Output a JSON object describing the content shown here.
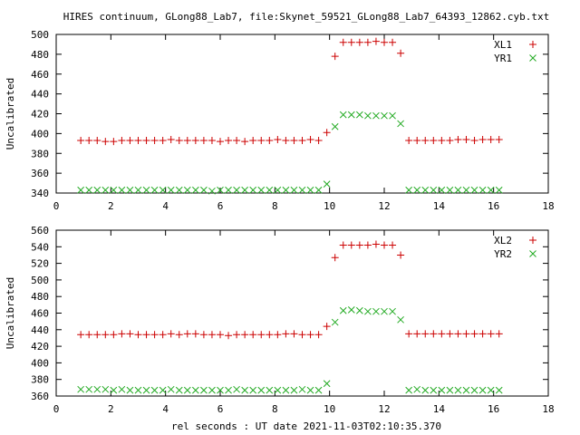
{
  "title": "HIRES continuum, GLong88_Lab7, file:Skynet_59521_GLong88_Lab7_64393_12862.cyb.txt",
  "xlabel": "rel seconds : UT date 2021-11-03T02:10:35.370",
  "colors": {
    "red": "#cc0000",
    "green": "#22aa22"
  },
  "chart_data": [
    {
      "type": "scatter",
      "ylabel": "Uncalibrated",
      "xlim": [
        0,
        18
      ],
      "ylim": [
        340,
        500
      ],
      "xticks": [
        "0",
        "2",
        "4",
        "6",
        "8",
        "10",
        "12",
        "14",
        "16",
        "18"
      ],
      "yticks": [
        "340",
        "360",
        "380",
        "400",
        "420",
        "440",
        "460",
        "480",
        "500"
      ],
      "legend_position": "top-right",
      "x": [
        0.9,
        1.2,
        1.5,
        1.8,
        2.1,
        2.4,
        2.7,
        3.0,
        3.3,
        3.6,
        3.9,
        4.2,
        4.5,
        4.8,
        5.1,
        5.4,
        5.7,
        6.0,
        6.3,
        6.6,
        6.9,
        7.2,
        7.5,
        7.8,
        8.1,
        8.4,
        8.7,
        9.0,
        9.3,
        9.6,
        9.9,
        10.2,
        10.5,
        10.8,
        11.1,
        11.4,
        11.7,
        12.0,
        12.3,
        12.6,
        12.9,
        13.2,
        13.5,
        13.8,
        14.1,
        14.4,
        14.7,
        15.0,
        15.3,
        15.6,
        15.9,
        16.2
      ],
      "series": [
        {
          "name": "XL1",
          "marker": "plus",
          "color": "#cc0000",
          "values": [
            393,
            393,
            393,
            392,
            392,
            393,
            393,
            393,
            393,
            393,
            393,
            394,
            393,
            393,
            393,
            393,
            393,
            392,
            393,
            393,
            392,
            393,
            393,
            393,
            394,
            393,
            393,
            393,
            394,
            393,
            401,
            478,
            492,
            492,
            492,
            492,
            493,
            492,
            492,
            481,
            393,
            393,
            393,
            393,
            393,
            393,
            394,
            394,
            393,
            394,
            394,
            394
          ]
        },
        {
          "name": "YR1",
          "marker": "cross",
          "color": "#22aa22",
          "values": [
            343,
            343,
            343,
            343,
            343,
            343,
            343,
            343,
            343,
            343,
            343,
            343,
            343,
            343,
            343,
            343,
            342,
            343,
            343,
            343,
            343,
            343,
            343,
            343,
            343,
            343,
            343,
            343,
            343,
            343,
            349,
            407,
            419,
            419,
            419,
            418,
            418,
            418,
            418,
            410,
            343,
            343,
            343,
            343,
            343,
            343,
            343,
            343,
            343,
            343,
            343,
            343
          ]
        }
      ]
    },
    {
      "type": "scatter",
      "ylabel": "Uncalibrated",
      "xlim": [
        0,
        18
      ],
      "ylim": [
        360,
        560
      ],
      "xticks": [
        "0",
        "2",
        "4",
        "6",
        "8",
        "10",
        "12",
        "14",
        "16",
        "18"
      ],
      "yticks": [
        "360",
        "380",
        "400",
        "420",
        "440",
        "460",
        "480",
        "500",
        "520",
        "540",
        "560"
      ],
      "legend_position": "top-right",
      "x": [
        0.9,
        1.2,
        1.5,
        1.8,
        2.1,
        2.4,
        2.7,
        3.0,
        3.3,
        3.6,
        3.9,
        4.2,
        4.5,
        4.8,
        5.1,
        5.4,
        5.7,
        6.0,
        6.3,
        6.6,
        6.9,
        7.2,
        7.5,
        7.8,
        8.1,
        8.4,
        8.7,
        9.0,
        9.3,
        9.6,
        9.9,
        10.2,
        10.5,
        10.8,
        11.1,
        11.4,
        11.7,
        12.0,
        12.3,
        12.6,
        12.9,
        13.2,
        13.5,
        13.8,
        14.1,
        14.4,
        14.7,
        15.0,
        15.3,
        15.6,
        15.9,
        16.2
      ],
      "series": [
        {
          "name": "XL2",
          "marker": "plus",
          "color": "#cc0000",
          "values": [
            434,
            434,
            434,
            434,
            434,
            435,
            435,
            434,
            434,
            434,
            434,
            435,
            434,
            435,
            435,
            434,
            434,
            434,
            433,
            434,
            434,
            434,
            434,
            434,
            434,
            435,
            435,
            434,
            434,
            434,
            444,
            527,
            542,
            542,
            542,
            542,
            543,
            542,
            542,
            530,
            435,
            435,
            435,
            435,
            435,
            435,
            435,
            435,
            435,
            435,
            435,
            435
          ]
        },
        {
          "name": "YR2",
          "marker": "cross",
          "color": "#22aa22",
          "values": [
            368,
            368,
            368,
            368,
            367,
            368,
            367,
            367,
            367,
            367,
            367,
            368,
            367,
            367,
            367,
            367,
            367,
            367,
            367,
            368,
            367,
            367,
            367,
            367,
            367,
            367,
            367,
            368,
            367,
            367,
            375,
            449,
            463,
            464,
            463,
            462,
            462,
            462,
            462,
            452,
            367,
            368,
            367,
            367,
            367,
            367,
            367,
            367,
            367,
            367,
            367,
            367
          ]
        }
      ]
    }
  ]
}
